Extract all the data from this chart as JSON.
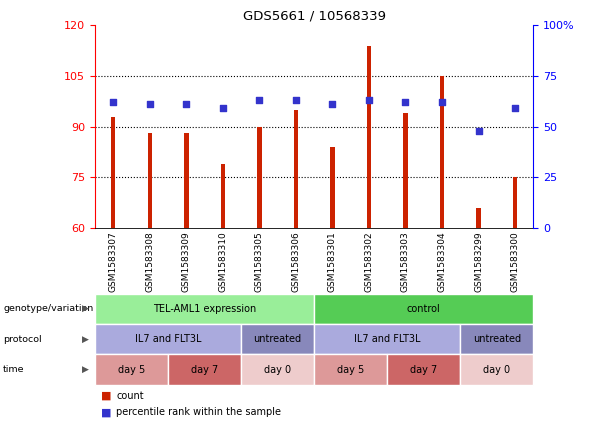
{
  "title": "GDS5661 / 10568339",
  "samples": [
    "GSM1583307",
    "GSM1583308",
    "GSM1583309",
    "GSM1583310",
    "GSM1583305",
    "GSM1583306",
    "GSM1583301",
    "GSM1583302",
    "GSM1583303",
    "GSM1583304",
    "GSM1583299",
    "GSM1583300"
  ],
  "bar_values": [
    93,
    88,
    88,
    79,
    90,
    95,
    84,
    114,
    94,
    105,
    66,
    75
  ],
  "dot_percentiles": [
    62,
    61,
    61,
    59,
    63,
    63,
    61,
    63,
    62,
    62,
    48,
    59
  ],
  "ylim_left": [
    60,
    120
  ],
  "ylim_right": [
    0,
    100
  ],
  "yticks_left": [
    60,
    75,
    90,
    105,
    120
  ],
  "yticks_right": [
    0,
    25,
    50,
    75,
    100
  ],
  "ytick_right_labels": [
    "0",
    "25",
    "50",
    "75",
    "100%"
  ],
  "hlines": [
    75,
    90,
    105
  ],
  "bar_color": "#cc2200",
  "dot_color": "#3333cc",
  "background_color": "#ffffff",
  "genotype_row": {
    "label": "genotype/variation",
    "groups": [
      {
        "text": "TEL-AML1 expression",
        "start": 0,
        "end": 6,
        "color": "#99ee99"
      },
      {
        "text": "control",
        "start": 6,
        "end": 12,
        "color": "#55cc55"
      }
    ]
  },
  "protocol_row": {
    "label": "protocol",
    "groups": [
      {
        "text": "IL7 and FLT3L",
        "start": 0,
        "end": 4,
        "color": "#aaaadd"
      },
      {
        "text": "untreated",
        "start": 4,
        "end": 6,
        "color": "#8888bb"
      },
      {
        "text": "IL7 and FLT3L",
        "start": 6,
        "end": 10,
        "color": "#aaaadd"
      },
      {
        "text": "untreated",
        "start": 10,
        "end": 12,
        "color": "#8888bb"
      }
    ]
  },
  "time_row": {
    "label": "time",
    "groups": [
      {
        "text": "day 5",
        "start": 0,
        "end": 2,
        "color": "#dd9999"
      },
      {
        "text": "day 7",
        "start": 2,
        "end": 4,
        "color": "#cc6666"
      },
      {
        "text": "day 0",
        "start": 4,
        "end": 6,
        "color": "#eecccc"
      },
      {
        "text": "day 5",
        "start": 6,
        "end": 8,
        "color": "#dd9999"
      },
      {
        "text": "day 7",
        "start": 8,
        "end": 10,
        "color": "#cc6666"
      },
      {
        "text": "day 0",
        "start": 10,
        "end": 12,
        "color": "#eecccc"
      }
    ]
  },
  "legend_items": [
    {
      "label": "count",
      "color": "#cc2200"
    },
    {
      "label": "percentile rank within the sample",
      "color": "#3333cc"
    }
  ],
  "gray_cell_color": "#cccccc",
  "cell_divider_color": "#ffffff",
  "left_label_color": "#000000",
  "arrow_color": "#555555"
}
